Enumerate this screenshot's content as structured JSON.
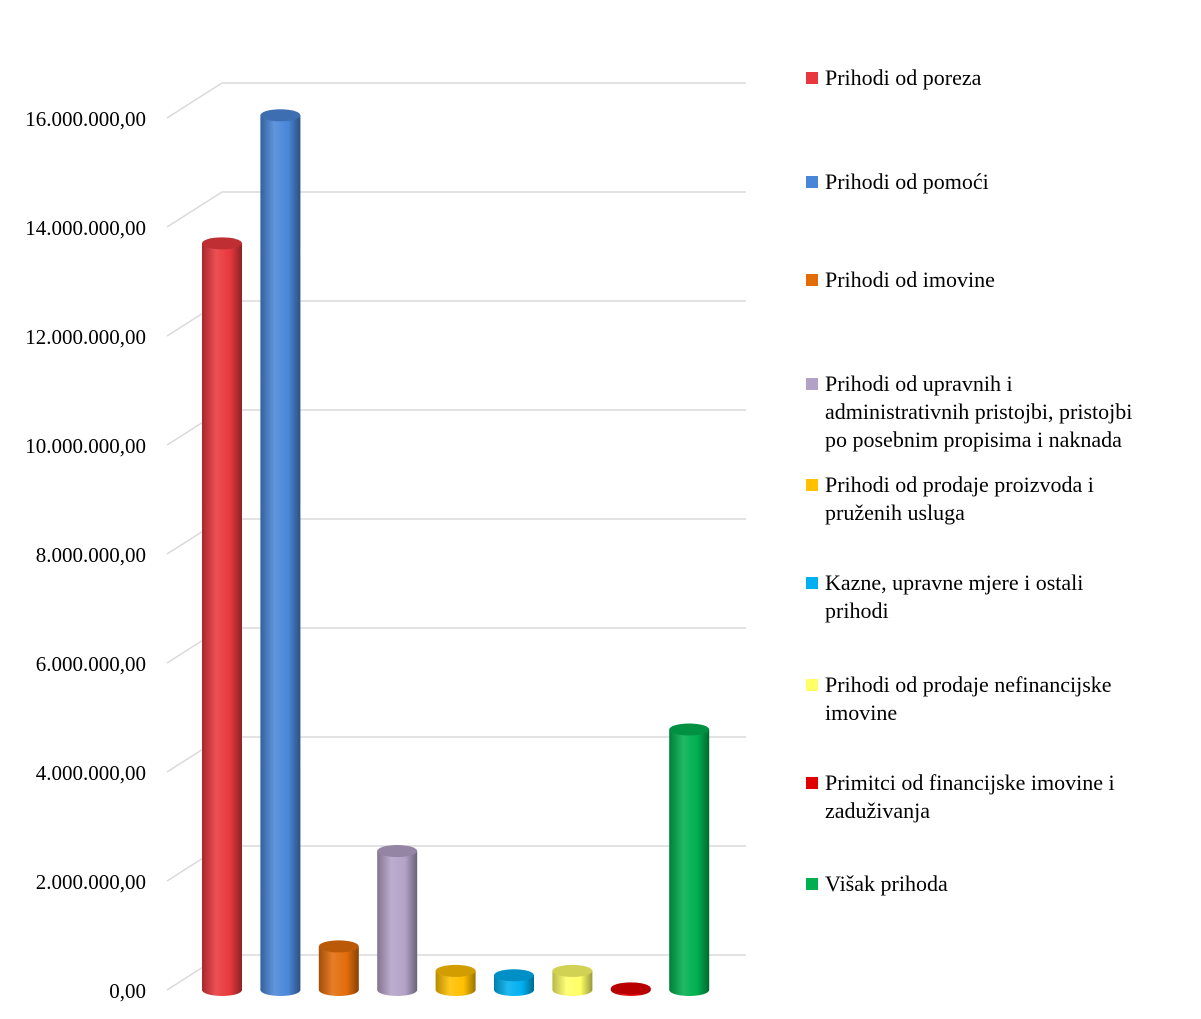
{
  "chart_data": {
    "type": "bar",
    "style": "3d-cylinder",
    "title": "",
    "xlabel": "",
    "ylabel": "",
    "ylim": [
      0,
      16000000
    ],
    "ytick_step": 2000000,
    "yticks": [
      "0,00",
      "2.000.000,00",
      "4.000.000,00",
      "6.000.000,00",
      "8.000.000,00",
      "10.000.000,00",
      "12.000.000,00",
      "14.000.000,00",
      "16.000.000,00"
    ],
    "grid": true,
    "legend_position": "right",
    "series": [
      {
        "name": "Prihodi od poreza",
        "value": 13700000,
        "color": "#E8383D"
      },
      {
        "name": "Prihodi od pomoći",
        "value": 16050000,
        "color": "#4A86D8"
      },
      {
        "name": "Prihodi od imovine",
        "value": 800000,
        "color": "#E36C0A"
      },
      {
        "name": "Prihodi od upravnih i administrativnih pristojbi, pristojbi po posebnim propisima i naknada",
        "value": 2550000,
        "color": "#B3A2C7"
      },
      {
        "name": "Prihodi od prodaje proizvoda i pruženih usluga",
        "value": 350000,
        "color": "#FFC000"
      },
      {
        "name": "Kazne, upravne mjere i ostali prihodi",
        "value": 270000,
        "color": "#00B0F0"
      },
      {
        "name": "Prihodi od prodaje nefinancijske imovine",
        "value": 350000,
        "color": "#FFFF66"
      },
      {
        "name": "Primitci od financijske imovine i zaduživanja",
        "value": 30000,
        "color": "#E00000"
      },
      {
        "name": "Višak prihoda",
        "value": 4780000,
        "color": "#00B050"
      }
    ]
  },
  "legend": {
    "items": [
      {
        "lines": [
          "Prihodi od poreza"
        ],
        "color": "#E8383D"
      },
      {
        "lines": [
          "Prihodi od pomoći"
        ],
        "color": "#4A86D8"
      },
      {
        "lines": [
          "Prihodi od imovine"
        ],
        "color": "#E36C0A"
      },
      {
        "lines": [
          "Prihodi od upravnih i",
          "administrativnih pristojbi, pristojbi",
          "po posebnim propisima i naknada"
        ],
        "color": "#B3A2C7"
      },
      {
        "lines": [
          "Prihodi od prodaje proizvoda i",
          "pruženih usluga"
        ],
        "color": "#FFC000"
      },
      {
        "lines": [
          "Kazne, upravne mjere i ostali",
          "prihodi"
        ],
        "color": "#00B0F0"
      },
      {
        "lines": [
          "Prihodi od prodaje nefinancijske",
          "imovine"
        ],
        "color": "#FFFF66"
      },
      {
        "lines": [
          "Primitci od financijske imovine i",
          "zaduživanja"
        ],
        "color": "#E00000"
      },
      {
        "lines": [
          "Višak prihoda"
        ],
        "color": "#00B050"
      }
    ]
  }
}
